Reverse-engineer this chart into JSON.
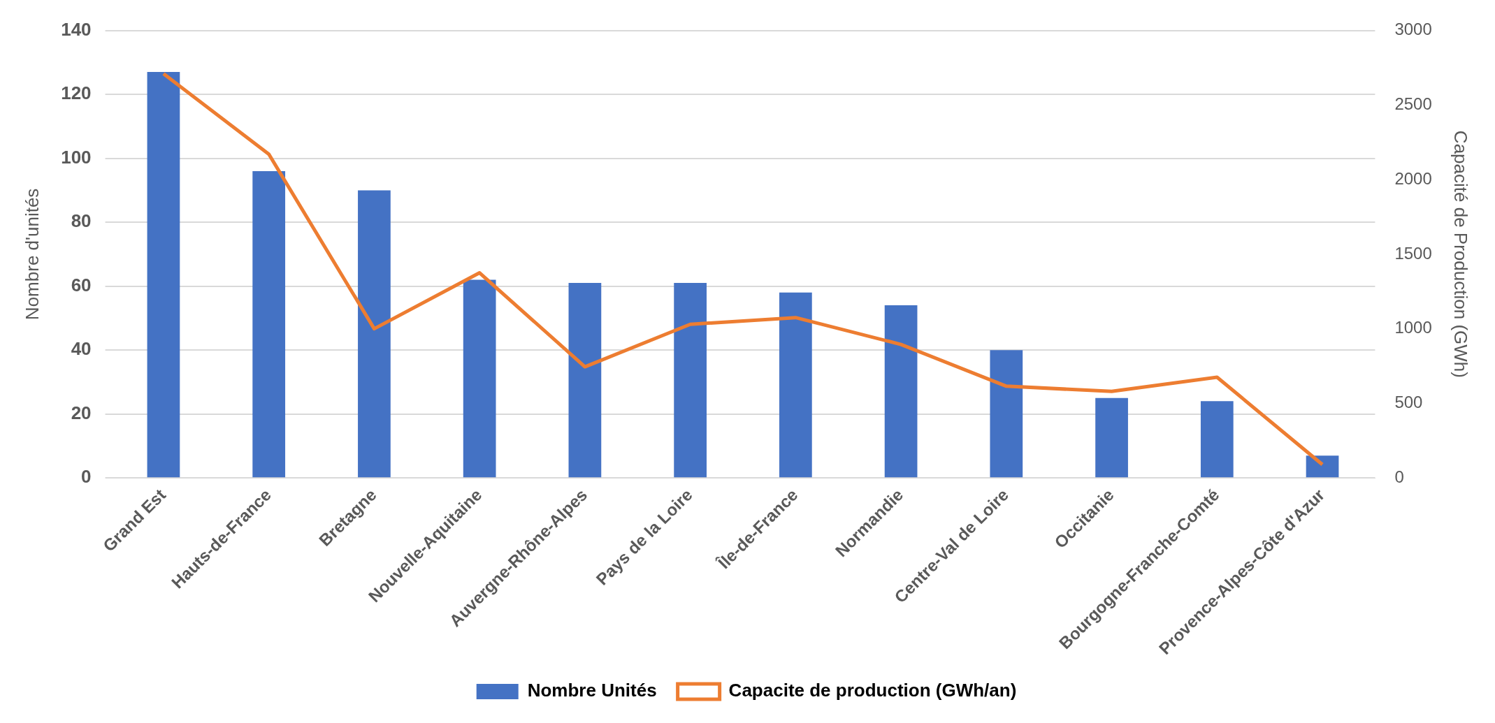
{
  "chart_data": {
    "type": "bar",
    "ylabel": "Nombre d'unités",
    "y2label": "Capacité de Production (GWh)",
    "categories": [
      "Grand Est",
      "Hauts-de-France",
      "Bretagne",
      "Nouvelle-Aquitaine",
      "Auvergne-Rhône-Alpes",
      "Pays de la Loire",
      "Île-de-France",
      "Normandie",
      "Centre-Val de Loire",
      "Occitanie",
      "Bourgogne-Franche-Comté",
      "Provence-Alpes-Côte d'Azur"
    ],
    "series": [
      {
        "name": "Nombre Unités",
        "color": "#4472c4",
        "values": [
          127,
          96,
          90,
          62,
          61,
          61,
          58,
          54,
          40,
          25,
          24,
          7
        ]
      },
      {
        "name": "Capacite de production (GWh/an)",
        "type": "line",
        "axis": "y2",
        "color": "#ed7d31",
        "values": [
          2710,
          2170,
          1000,
          1375,
          745,
          1030,
          1075,
          895,
          615,
          580,
          675,
          90
        ]
      }
    ],
    "ylim": [
      0,
      140
    ],
    "yticks": [
      0,
      20,
      40,
      60,
      80,
      100,
      120,
      140
    ],
    "y2lim": [
      0,
      3000
    ],
    "y2ticks": [
      0,
      500,
      1000,
      1500,
      2000,
      2500,
      3000
    ],
    "grid": "y",
    "legend": "bottom",
    "marker": "none"
  }
}
